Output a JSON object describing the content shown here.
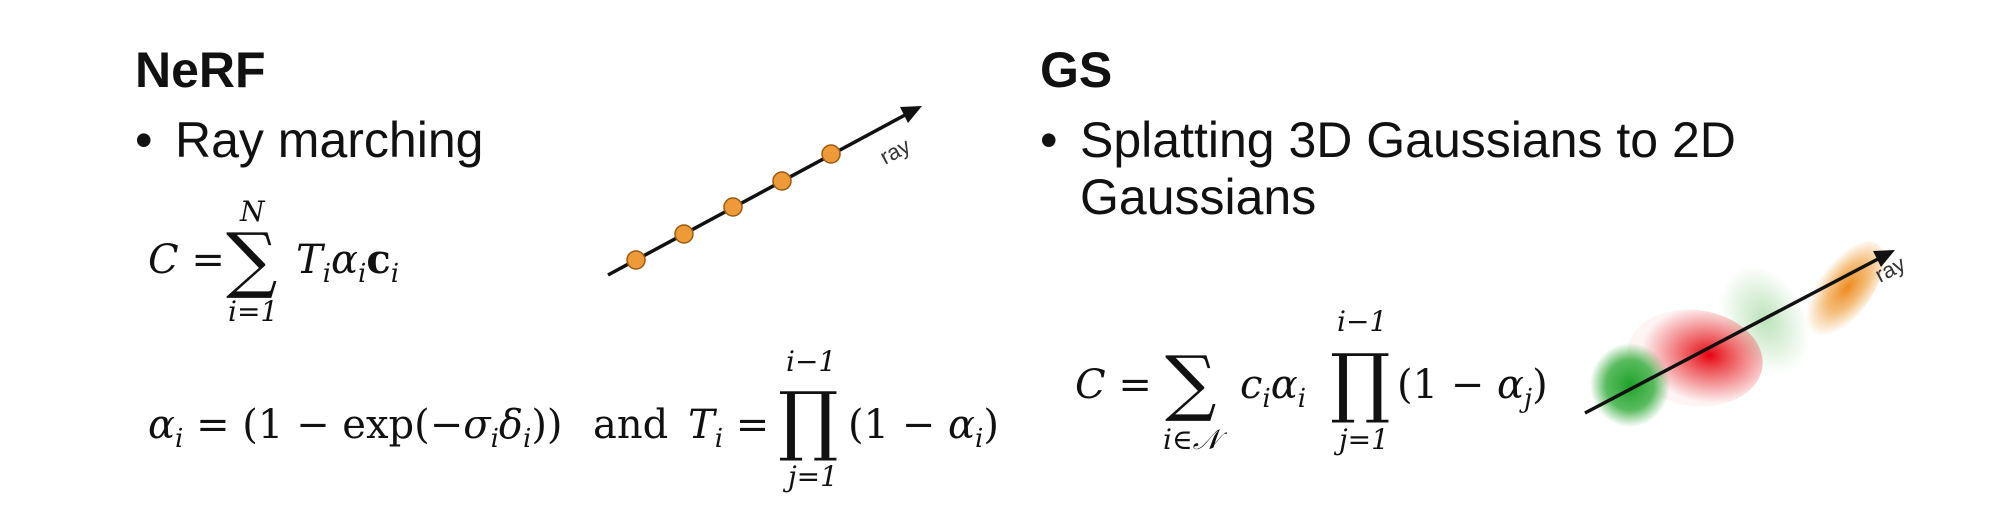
{
  "nerf": {
    "title": "NeRF",
    "bullet": "Ray marching",
    "ray_label": "ray",
    "sum_upper": "N",
    "sum_lower": "i=1",
    "prod_upper": "i−1",
    "prod_lower": "j=1",
    "and_word": "and",
    "sample_color": "#EE9A38"
  },
  "gs": {
    "title": "GS",
    "bullet_line1": "Splatting 3D Gaussians to 2D",
    "bullet_line2": "Gaussians",
    "ray_label": "ray",
    "prod_upper": "i−1",
    "prod_lower": "j=1",
    "gaussian_colors": [
      "#3CB043",
      "#E8262B",
      "#8FD08A",
      "#F0A040"
    ]
  }
}
